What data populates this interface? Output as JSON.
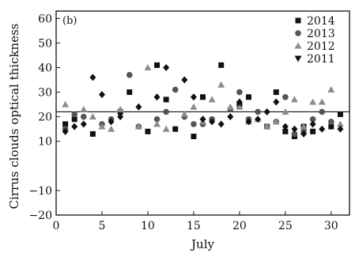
{
  "chart_data": {
    "type": "scatter",
    "panel_label": "(b)",
    "xlabel": "July",
    "ylabel": "Cirrus clouds optical thickness",
    "xlim": [
      0,
      32
    ],
    "ylim": [
      -20,
      63
    ],
    "xticks": [
      0,
      5,
      10,
      15,
      20,
      25,
      30
    ],
    "yticks": [
      -20,
      -10,
      10,
      20,
      30,
      40,
      50,
      60
    ],
    "ytick_labels": [
      "−20",
      "−10",
      "10",
      "20",
      "30",
      "40",
      "50",
      "60"
    ],
    "grid": false,
    "legend_position": "top-right",
    "reference_line_y": 22,
    "series": [
      {
        "name": "2014",
        "marker": "square",
        "color": "#111111",
        "points": [
          [
            1,
            17
          ],
          [
            2,
            19
          ],
          [
            4,
            13
          ],
          [
            7,
            22
          ],
          [
            8,
            30
          ],
          [
            10,
            14
          ],
          [
            11,
            41
          ],
          [
            12,
            27
          ],
          [
            13,
            15
          ],
          [
            15,
            12
          ],
          [
            16,
            28
          ],
          [
            18,
            41
          ],
          [
            20,
            25
          ],
          [
            21,
            28
          ],
          [
            23,
            16
          ],
          [
            24,
            30
          ],
          [
            25,
            14
          ],
          [
            26,
            12
          ],
          [
            27,
            16
          ],
          [
            28,
            14
          ],
          [
            30,
            16
          ],
          [
            31,
            21
          ]
        ]
      },
      {
        "name": "2013",
        "marker": "circle",
        "color": "#555555",
        "points": [
          [
            1,
            15
          ],
          [
            2,
            21
          ],
          [
            3,
            20
          ],
          [
            5,
            17
          ],
          [
            6,
            19
          ],
          [
            8,
            37
          ],
          [
            9,
            16
          ],
          [
            11,
            19
          ],
          [
            12,
            22
          ],
          [
            13,
            31
          ],
          [
            14,
            20
          ],
          [
            15,
            17
          ],
          [
            16,
            17
          ],
          [
            17,
            19
          ],
          [
            19,
            23
          ],
          [
            20,
            30
          ],
          [
            21,
            19
          ],
          [
            22,
            22
          ],
          [
            23,
            16
          ],
          [
            24,
            18
          ],
          [
            25,
            28
          ],
          [
            26,
            13
          ],
          [
            27,
            14
          ],
          [
            28,
            19
          ],
          [
            29,
            22
          ],
          [
            30,
            18
          ]
        ]
      },
      {
        "name": "2012",
        "marker": "triangle",
        "color": "#8c8c8c",
        "points": [
          [
            1,
            25
          ],
          [
            3,
            23
          ],
          [
            4,
            20
          ],
          [
            5,
            16
          ],
          [
            6,
            15
          ],
          [
            7,
            23
          ],
          [
            9,
            16
          ],
          [
            10,
            40
          ],
          [
            11,
            17
          ],
          [
            12,
            15
          ],
          [
            14,
            21
          ],
          [
            15,
            24
          ],
          [
            16,
            18
          ],
          [
            17,
            27
          ],
          [
            18,
            33
          ],
          [
            19,
            24
          ],
          [
            20,
            24
          ],
          [
            21,
            18
          ],
          [
            22,
            19
          ],
          [
            23,
            16
          ],
          [
            24,
            18
          ],
          [
            25,
            22
          ],
          [
            26,
            27
          ],
          [
            27,
            16
          ],
          [
            28,
            26
          ],
          [
            29,
            26
          ],
          [
            30,
            31
          ],
          [
            31,
            17
          ]
        ]
      },
      {
        "name": "2011",
        "marker": "diamond",
        "color": "#111111",
        "points": [
          [
            1,
            14
          ],
          [
            2,
            16
          ],
          [
            3,
            17
          ],
          [
            4,
            36
          ],
          [
            5,
            29
          ],
          [
            6,
            18
          ],
          [
            7,
            20
          ],
          [
            9,
            24
          ],
          [
            11,
            28
          ],
          [
            12,
            40
          ],
          [
            14,
            35
          ],
          [
            15,
            28
          ],
          [
            16,
            19
          ],
          [
            17,
            18
          ],
          [
            18,
            17
          ],
          [
            19,
            20
          ],
          [
            20,
            26
          ],
          [
            21,
            18
          ],
          [
            22,
            19
          ],
          [
            23,
            22
          ],
          [
            24,
            26
          ],
          [
            25,
            16
          ],
          [
            26,
            15
          ],
          [
            27,
            13
          ],
          [
            28,
            17
          ],
          [
            29,
            15
          ],
          [
            31,
            15
          ]
        ]
      }
    ]
  }
}
